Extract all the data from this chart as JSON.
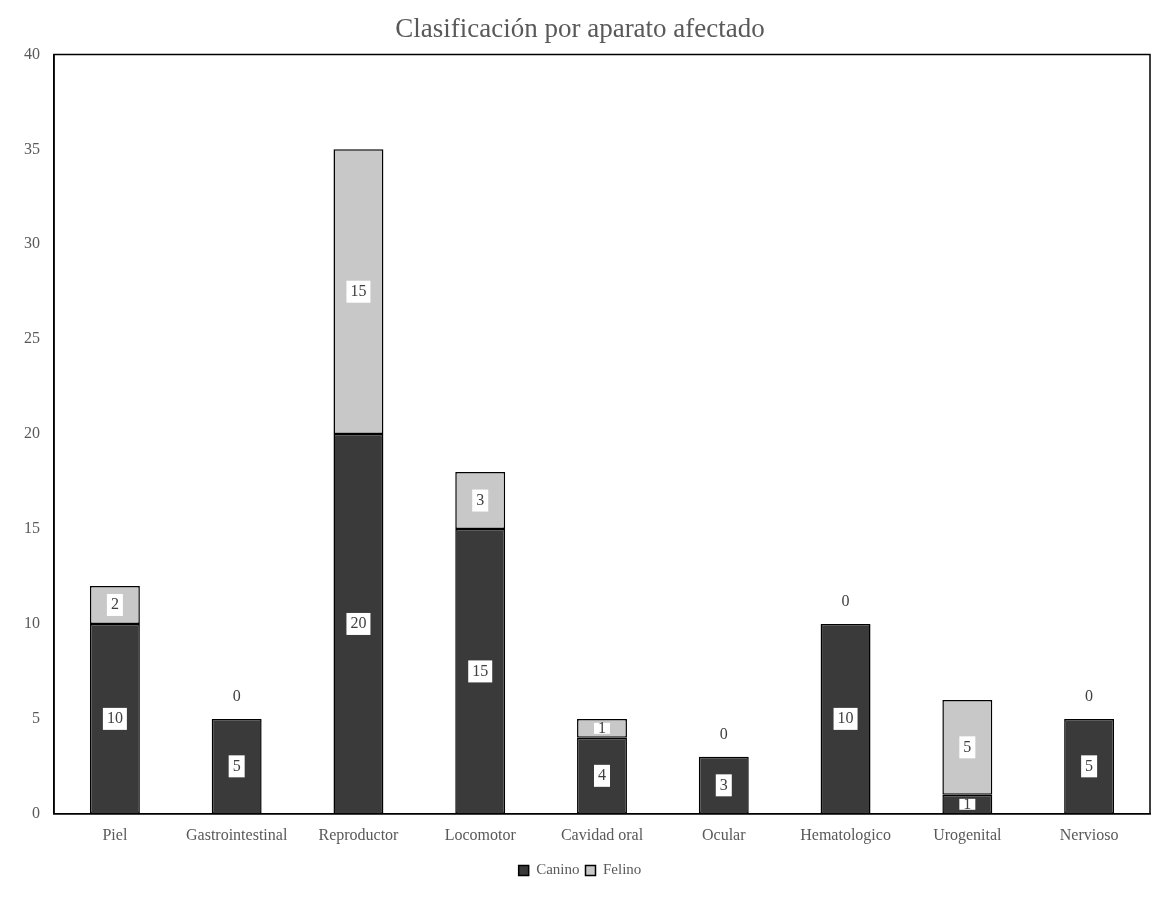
{
  "chart_data": {
    "type": "bar",
    "title": "Clasificación por aparato afectado",
    "categories": [
      "Piel",
      "Gastrointestinal",
      "Reproductor",
      "Locomotor",
      "Cavidad oral",
      "Ocular",
      "Hematologico",
      "Urogenital",
      "Nervioso"
    ],
    "series": [
      {
        "name": "Canino",
        "color": "#3a3a3a",
        "values": [
          10,
          5,
          20,
          15,
          4,
          3,
          10,
          1,
          5
        ]
      },
      {
        "name": "Felino",
        "color": "#c8c8c8",
        "values": [
          2,
          0,
          15,
          3,
          1,
          0,
          0,
          5,
          0
        ]
      }
    ],
    "stacked": true,
    "data_labels": true,
    "ylim": [
      0,
      40
    ],
    "yticks": [
      0,
      5,
      10,
      15,
      20,
      25,
      30,
      35,
      40
    ],
    "grid": false,
    "legend": "bottom"
  }
}
